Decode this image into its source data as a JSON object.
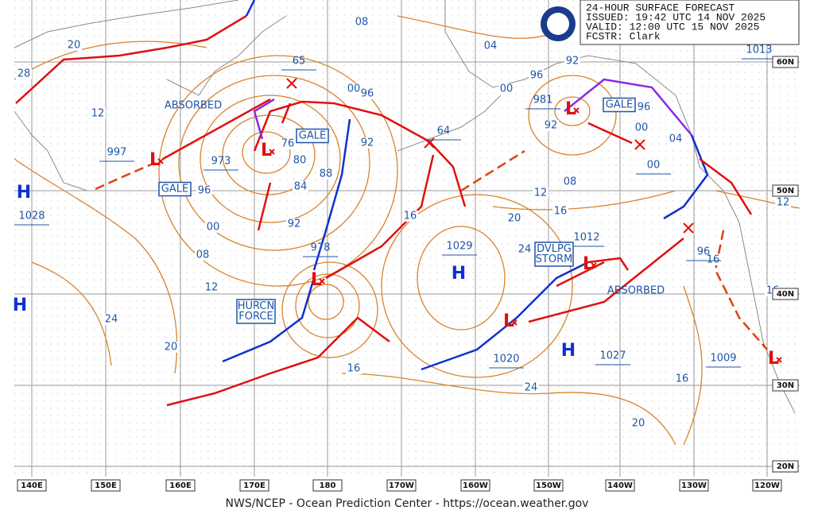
{
  "header": {
    "title": "24-HOUR SURFACE FORECAST",
    "issued": "ISSUED: 19:42 UTC 14 NOV 2025",
    "valid": "VALID:  12:00 UTC 15 NOV 2025",
    "forecaster": "FCSTR:  Clark"
  },
  "symbols": {
    "high": "H",
    "low": "L"
  },
  "pressure_centers": [
    "997",
    "973",
    "1028",
    "65",
    "978",
    "64",
    "1029",
    "981",
    "00",
    "1012",
    "1020",
    "1027",
    "96",
    "1009",
    "1013"
  ],
  "warnings": [
    [
      "ABSORBED"
    ],
    [
      "GALE"
    ],
    [
      "GALE"
    ],
    [
      "HURCN",
      "FORCE"
    ],
    [
      "GALE"
    ],
    [
      "DVLPG",
      "STORM"
    ],
    [
      "ABSORBED"
    ]
  ],
  "isobar_labels": [
    "20",
    "28",
    "12",
    "08",
    "04",
    "92",
    "96",
    "00",
    "00",
    "96",
    "92",
    "76",
    "80",
    "88",
    "84",
    "92",
    "96",
    "00",
    "08",
    "12",
    "24",
    "20",
    "16",
    "16",
    "20",
    "24",
    "16",
    "12",
    "08",
    "04",
    "00",
    "96",
    "92",
    "12",
    "16",
    "16",
    "16",
    "24",
    "20"
  ],
  "latitude_labels": [
    "60N",
    "50N",
    "40N",
    "30N",
    "20N"
  ],
  "longitude_labels": [
    "140E",
    "150E",
    "160E",
    "170E",
    "180",
    "170W",
    "160W",
    "150W",
    "140W",
    "130W",
    "120W"
  ],
  "footer": "NWS/NCEP - Ocean Prediction Center - https://ocean.weather.gov"
}
